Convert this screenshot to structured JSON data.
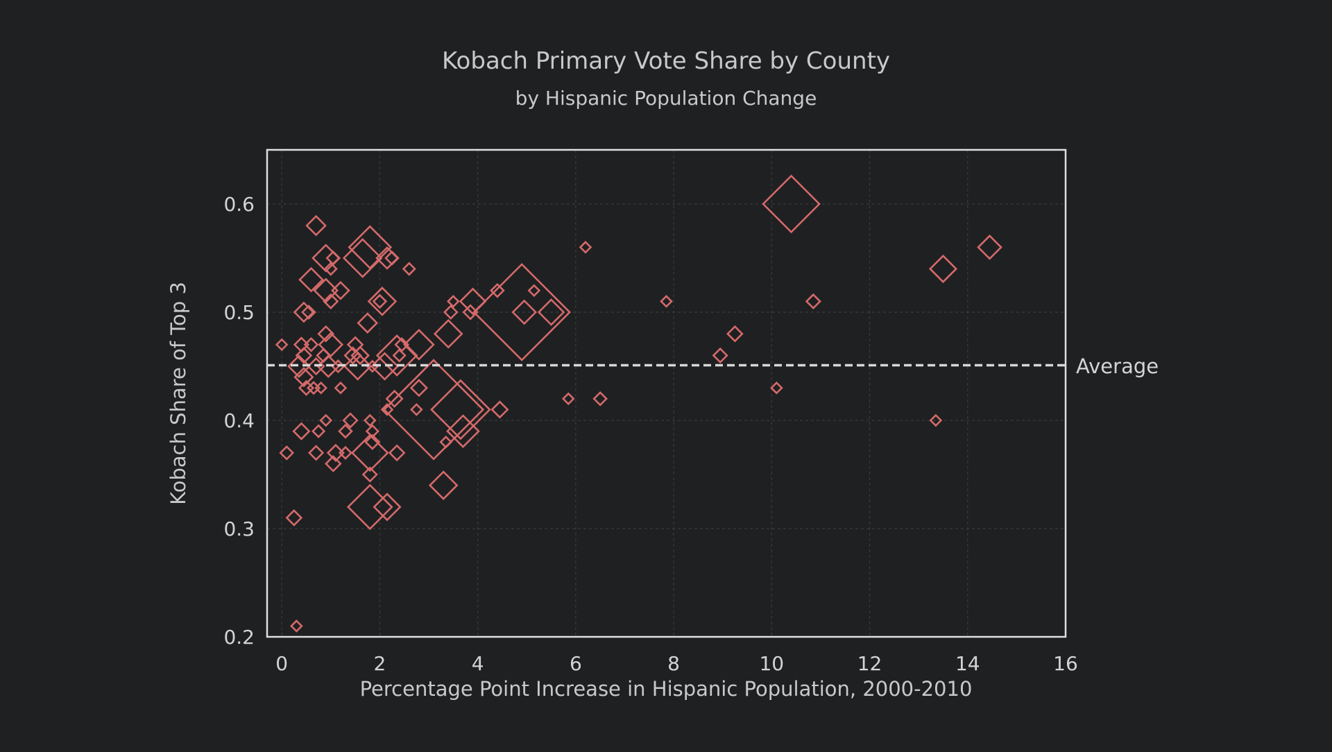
{
  "chart_data": {
    "type": "scatter",
    "title": "Kobach Primary Vote Share by County",
    "subtitle": "by Hispanic Population Change",
    "xlabel": "Percentage Point Increase in Hispanic Population, 2000-2010",
    "ylabel": "Kobach Share of Top 3",
    "xlim": [
      -0.3,
      16
    ],
    "ylim": [
      0.2,
      0.65
    ],
    "xticks": [
      "0",
      "2",
      "4",
      "6",
      "8",
      "10",
      "12",
      "14",
      "16"
    ],
    "yticks": [
      "0.2",
      "0.3",
      "0.4",
      "0.5",
      "0.6"
    ],
    "xtick_values": [
      0,
      2,
      4,
      6,
      8,
      10,
      12,
      14,
      16
    ],
    "ytick_values": [
      0.2,
      0.3,
      0.4,
      0.5,
      0.6
    ],
    "grid": true,
    "marker": "diamond",
    "marker_color": "#d46a6a",
    "reference_line": {
      "y": 0.451,
      "label": "Average",
      "style": "dashed",
      "color": "#d8d8d8"
    },
    "size_encoding": "marker size proportional to county population",
    "points": [
      {
        "x": 0.0,
        "y": 0.47,
        "s": 1
      },
      {
        "x": 0.1,
        "y": 0.37,
        "s": 1.2
      },
      {
        "x": 0.25,
        "y": 0.31,
        "s": 1.4
      },
      {
        "x": 0.3,
        "y": 0.21,
        "s": 1
      },
      {
        "x": 0.35,
        "y": 0.45,
        "s": 2
      },
      {
        "x": 0.4,
        "y": 0.39,
        "s": 1.5
      },
      {
        "x": 0.4,
        "y": 0.47,
        "s": 1.3
      },
      {
        "x": 0.45,
        "y": 0.5,
        "s": 1.8
      },
      {
        "x": 0.45,
        "y": 0.44,
        "s": 1.7
      },
      {
        "x": 0.45,
        "y": 0.46,
        "s": 1.4
      },
      {
        "x": 0.5,
        "y": 0.43,
        "s": 1.3
      },
      {
        "x": 0.55,
        "y": 0.5,
        "s": 1.2
      },
      {
        "x": 0.6,
        "y": 0.53,
        "s": 2.2
      },
      {
        "x": 0.6,
        "y": 0.47,
        "s": 1.2
      },
      {
        "x": 0.65,
        "y": 0.43,
        "s": 1.1
      },
      {
        "x": 0.7,
        "y": 0.58,
        "s": 1.8
      },
      {
        "x": 0.7,
        "y": 0.45,
        "s": 1.5
      },
      {
        "x": 0.7,
        "y": 0.37,
        "s": 1.3
      },
      {
        "x": 0.75,
        "y": 0.39,
        "s": 1.1
      },
      {
        "x": 0.8,
        "y": 0.43,
        "s": 1
      },
      {
        "x": 0.85,
        "y": 0.46,
        "s": 1.2
      },
      {
        "x": 0.9,
        "y": 0.55,
        "s": 2.5
      },
      {
        "x": 0.9,
        "y": 0.52,
        "s": 2.2
      },
      {
        "x": 0.9,
        "y": 0.48,
        "s": 1.4
      },
      {
        "x": 0.9,
        "y": 0.4,
        "s": 1
      },
      {
        "x": 0.95,
        "y": 0.45,
        "s": 2
      },
      {
        "x": 1.0,
        "y": 0.47,
        "s": 2.2
      },
      {
        "x": 1.0,
        "y": 0.51,
        "s": 1.3
      },
      {
        "x": 1.0,
        "y": 0.54,
        "s": 1.1
      },
      {
        "x": 1.05,
        "y": 0.55,
        "s": 1.2
      },
      {
        "x": 1.05,
        "y": 0.36,
        "s": 1.4
      },
      {
        "x": 1.1,
        "y": 0.37,
        "s": 1.5
      },
      {
        "x": 1.15,
        "y": 0.45,
        "s": 1.1
      },
      {
        "x": 1.2,
        "y": 0.52,
        "s": 1.6
      },
      {
        "x": 1.2,
        "y": 0.43,
        "s": 1
      },
      {
        "x": 1.3,
        "y": 0.39,
        "s": 1.2
      },
      {
        "x": 1.3,
        "y": 0.37,
        "s": 1.1
      },
      {
        "x": 1.4,
        "y": 0.4,
        "s": 1.3
      },
      {
        "x": 1.45,
        "y": 0.46,
        "s": 1.5
      },
      {
        "x": 1.5,
        "y": 0.47,
        "s": 1.4
      },
      {
        "x": 1.55,
        "y": 0.45,
        "s": 2.5
      },
      {
        "x": 1.6,
        "y": 0.46,
        "s": 1.6
      },
      {
        "x": 1.65,
        "y": 0.55,
        "s": 3.6
      },
      {
        "x": 1.75,
        "y": 0.49,
        "s": 1.8
      },
      {
        "x": 1.8,
        "y": 0.56,
        "s": 4
      },
      {
        "x": 1.8,
        "y": 0.37,
        "s": 3.4
      },
      {
        "x": 1.8,
        "y": 0.32,
        "s": 4.2
      },
      {
        "x": 1.8,
        "y": 0.4,
        "s": 1
      },
      {
        "x": 1.8,
        "y": 0.35,
        "s": 1.3
      },
      {
        "x": 1.85,
        "y": 0.45,
        "s": 1
      },
      {
        "x": 1.85,
        "y": 0.39,
        "s": 1.1
      },
      {
        "x": 1.85,
        "y": 0.38,
        "s": 1.3
      },
      {
        "x": 2.0,
        "y": 0.51,
        "s": 1.2
      },
      {
        "x": 2.05,
        "y": 0.51,
        "s": 2.6
      },
      {
        "x": 2.1,
        "y": 0.45,
        "s": 2.5
      },
      {
        "x": 2.15,
        "y": 0.55,
        "s": 2
      },
      {
        "x": 2.15,
        "y": 0.32,
        "s": 2.5
      },
      {
        "x": 2.15,
        "y": 0.41,
        "s": 1
      },
      {
        "x": 2.25,
        "y": 0.55,
        "s": 1.2
      },
      {
        "x": 2.3,
        "y": 0.42,
        "s": 1.5
      },
      {
        "x": 2.35,
        "y": 0.46,
        "s": 3.8
      },
      {
        "x": 2.35,
        "y": 0.37,
        "s": 1.4
      },
      {
        "x": 2.4,
        "y": 0.46,
        "s": 1.1
      },
      {
        "x": 2.45,
        "y": 0.47,
        "s": 1.2
      },
      {
        "x": 2.6,
        "y": 0.54,
        "s": 1.1
      },
      {
        "x": 2.75,
        "y": 0.41,
        "s": 1
      },
      {
        "x": 2.8,
        "y": 0.47,
        "s": 2.8
      },
      {
        "x": 2.8,
        "y": 0.43,
        "s": 1.5
      },
      {
        "x": 3.1,
        "y": 0.41,
        "s": 9.5
      },
      {
        "x": 3.3,
        "y": 0.34,
        "s": 2.6
      },
      {
        "x": 3.35,
        "y": 0.38,
        "s": 1
      },
      {
        "x": 3.4,
        "y": 0.48,
        "s": 2.6
      },
      {
        "x": 3.45,
        "y": 0.5,
        "s": 1.2
      },
      {
        "x": 3.5,
        "y": 0.51,
        "s": 1
      },
      {
        "x": 3.65,
        "y": 0.41,
        "s": 5.6
      },
      {
        "x": 3.7,
        "y": 0.39,
        "s": 3
      },
      {
        "x": 3.85,
        "y": 0.5,
        "s": 1.3
      },
      {
        "x": 3.9,
        "y": 0.51,
        "s": 2.4
      },
      {
        "x": 4.4,
        "y": 0.52,
        "s": 1.2
      },
      {
        "x": 4.45,
        "y": 0.41,
        "s": 1.5
      },
      {
        "x": 4.9,
        "y": 0.5,
        "s": 9.2
      },
      {
        "x": 4.95,
        "y": 0.5,
        "s": 2.2
      },
      {
        "x": 5.15,
        "y": 0.52,
        "s": 1
      },
      {
        "x": 5.5,
        "y": 0.5,
        "s": 2.4
      },
      {
        "x": 5.85,
        "y": 0.42,
        "s": 1
      },
      {
        "x": 6.2,
        "y": 0.56,
        "s": 1
      },
      {
        "x": 6.5,
        "y": 0.42,
        "s": 1.2
      },
      {
        "x": 7.85,
        "y": 0.51,
        "s": 1
      },
      {
        "x": 8.95,
        "y": 0.46,
        "s": 1.3
      },
      {
        "x": 9.25,
        "y": 0.48,
        "s": 1.4
      },
      {
        "x": 10.1,
        "y": 0.43,
        "s": 1
      },
      {
        "x": 10.4,
        "y": 0.6,
        "s": 5.4
      },
      {
        "x": 10.85,
        "y": 0.51,
        "s": 1.3
      },
      {
        "x": 13.35,
        "y": 0.4,
        "s": 1
      },
      {
        "x": 13.5,
        "y": 0.54,
        "s": 2.5
      },
      {
        "x": 14.45,
        "y": 0.56,
        "s": 2.2
      }
    ]
  }
}
